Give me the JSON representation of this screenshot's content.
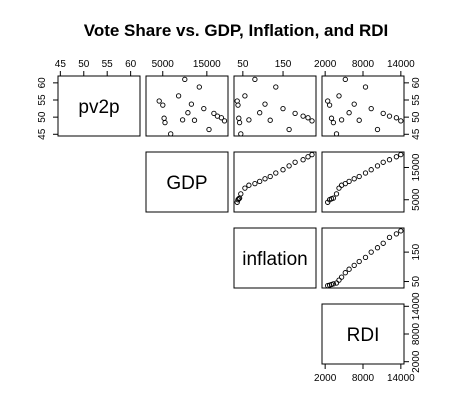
{
  "chart_data": {
    "type": "scatter",
    "title": "Vote Share vs. GDP, Inflation, and RDI",
    "variables": [
      "pv2p",
      "GDP",
      "inflation",
      "RDI"
    ],
    "axes": {
      "pv2p": {
        "ticks": [
          45,
          50,
          55,
          60
        ],
        "tick_labels": [
          "45",
          "50",
          "55",
          "60"
        ],
        "range": [
          44.5,
          62
        ]
      },
      "GDP": {
        "ticks": [
          5000,
          15000
        ],
        "tick_labels": [
          "5000",
          "15000"
        ],
        "range": [
          1200,
          19800
        ]
      },
      "inflation": {
        "ticks": [
          50,
          150
        ],
        "tick_labels": [
          "50",
          "150"
        ],
        "range": [
          28,
          232
        ]
      },
      "RDI": {
        "ticks": [
          2000,
          8000,
          14000
        ],
        "tick_labels": [
          "2000",
          "8000",
          "14000"
        ],
        "range": [
          1500,
          14500
        ]
      }
    },
    "observations": [
      {
        "pv2p": 54.7,
        "GDP": 4200,
        "inflation": 36,
        "RDI": 2400
      },
      {
        "pv2p": 53.5,
        "GDP": 5000,
        "inflation": 38,
        "RDI": 2700
      },
      {
        "pv2p": 49.7,
        "GDP": 5300,
        "inflation": 40,
        "RDI": 3000
      },
      {
        "pv2p": 48.4,
        "GDP": 5500,
        "inflation": 42,
        "RDI": 3300
      },
      {
        "pv2p": 45.1,
        "GDP": 6800,
        "inflation": 45,
        "RDI": 3800
      },
      {
        "pv2p": 56.2,
        "GDP": 8600,
        "inflation": 55,
        "RDI": 4200
      },
      {
        "pv2p": 49.2,
        "GDP": 9500,
        "inflation": 65,
        "RDI": 4600
      },
      {
        "pv2p": 61.0,
        "GDP": 10000,
        "inflation": 80,
        "RDI": 5200
      },
      {
        "pv2p": 51.3,
        "GDP": 10700,
        "inflation": 92,
        "RDI": 5800
      },
      {
        "pv2p": 53.8,
        "GDP": 11500,
        "inflation": 105,
        "RDI": 6600
      },
      {
        "pv2p": 49.1,
        "GDP": 12200,
        "inflation": 118,
        "RDI": 7400
      },
      {
        "pv2p": 58.8,
        "GDP": 13300,
        "inflation": 132,
        "RDI": 8400
      },
      {
        "pv2p": 52.5,
        "GDP": 14300,
        "inflation": 150,
        "RDI": 9300
      },
      {
        "pv2p": 46.4,
        "GDP": 15500,
        "inflation": 165,
        "RDI": 10300
      },
      {
        "pv2p": 51.1,
        "GDP": 16600,
        "inflation": 180,
        "RDI": 11200
      },
      {
        "pv2p": 50.3,
        "GDP": 17400,
        "inflation": 200,
        "RDI": 12200
      },
      {
        "pv2p": 49.8,
        "GDP": 18300,
        "inflation": 212,
        "RDI": 13300
      },
      {
        "pv2p": 48.9,
        "GDP": 19000,
        "inflation": 222,
        "RDI": 14000
      }
    ]
  }
}
